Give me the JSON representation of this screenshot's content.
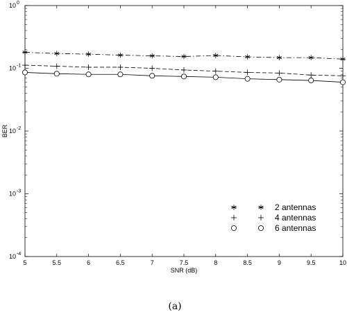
{
  "chart_data": {
    "type": "line",
    "x": [
      5,
      5.5,
      6,
      6.5,
      7,
      7.5,
      8,
      8.5,
      9,
      9.5,
      10
    ],
    "series": [
      {
        "name": "2 antennas",
        "marker": "asterisk",
        "line_style": "dash-dot",
        "values": [
          0.18,
          0.172,
          0.168,
          0.162,
          0.158,
          0.154,
          0.16,
          0.152,
          0.148,
          0.148,
          0.14
        ]
      },
      {
        "name": "4 antennas",
        "marker": "plus",
        "line_style": "dashed",
        "values": [
          0.112,
          0.108,
          0.104,
          0.104,
          0.1,
          0.094,
          0.09,
          0.086,
          0.084,
          0.078,
          0.076
        ]
      },
      {
        "name": "6 antennas",
        "marker": "circle",
        "line_style": "solid",
        "values": [
          0.086,
          0.082,
          0.08,
          0.08,
          0.076,
          0.074,
          0.072,
          0.068,
          0.066,
          0.064,
          0.06
        ]
      }
    ],
    "xlabel": "SNR (dB)",
    "ylabel": "BER",
    "xlim": [
      5,
      10
    ],
    "ylim": [
      0.0001,
      1
    ],
    "y_scale": "log",
    "x_ticks": [
      "5",
      "5.5",
      "6",
      "6.5",
      "7",
      "7.5",
      "8",
      "8.5",
      "9",
      "9.5",
      "10"
    ],
    "y_ticks": [
      {
        "base": "10",
        "exp": "-4",
        "value": 0.0001
      },
      {
        "base": "10",
        "exp": "-3",
        "value": 0.001
      },
      {
        "base": "10",
        "exp": "-2",
        "value": 0.01
      },
      {
        "base": "10",
        "exp": "-1",
        "value": 0.1
      },
      {
        "base": "10",
        "exp": "0",
        "value": 1
      }
    ],
    "grid": false,
    "legend_position": "bottom-right"
  },
  "caption": "(a)"
}
